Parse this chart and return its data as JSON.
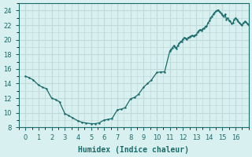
{
  "xlabel": "Humidex (Indice chaleur)",
  "ylabel": "",
  "xlim": [
    -0.5,
    17.0
  ],
  "ylim": [
    8,
    25
  ],
  "yticks": [
    8,
    10,
    12,
    14,
    16,
    18,
    20,
    22,
    24
  ],
  "xticks": [
    0,
    1,
    2,
    3,
    4,
    5,
    6,
    7,
    8,
    9,
    10,
    11,
    12,
    13,
    14,
    15,
    16
  ],
  "bg_color": "#d9f0f0",
  "grid_color": "#c0dada",
  "line_color": "#1a6b6b",
  "x": [
    0,
    0.3,
    0.6,
    1.0,
    1.3,
    1.6,
    2.0,
    2.3,
    2.6,
    3.0,
    3.3,
    3.6,
    4.0,
    4.3,
    4.6,
    5.0,
    5.3,
    5.6,
    6.0,
    6.3,
    6.6,
    7.0,
    7.3,
    7.6,
    8.0,
    8.3,
    8.6,
    9.0,
    9.3,
    9.6,
    10.0,
    10.3,
    10.6,
    11.0,
    11.1,
    11.2,
    11.3,
    11.4,
    11.5,
    11.6,
    11.7,
    11.8,
    11.9,
    12.0,
    12.1,
    12.2,
    12.3,
    12.4,
    12.5,
    12.6,
    12.7,
    12.8,
    12.9,
    13.0,
    13.1,
    13.2,
    13.3,
    13.4,
    13.5,
    13.6,
    13.7,
    13.8,
    13.9,
    14.0,
    14.1,
    14.2,
    14.3,
    14.4,
    14.5,
    14.6,
    14.7,
    14.8,
    14.9,
    15.0,
    15.1,
    15.2,
    15.3,
    15.4,
    15.5,
    15.6,
    15.7,
    15.8,
    15.9,
    16.0,
    16.1,
    16.2,
    16.3,
    16.4,
    16.5,
    16.6,
    16.7,
    16.8,
    16.9,
    17.0
  ],
  "y": [
    15.0,
    14.8,
    14.5,
    13.8,
    13.5,
    13.3,
    12.0,
    11.8,
    11.5,
    9.9,
    9.6,
    9.3,
    8.9,
    8.7,
    8.6,
    8.5,
    8.5,
    8.6,
    9.0,
    9.1,
    9.2,
    10.4,
    10.5,
    10.7,
    11.9,
    12.1,
    12.5,
    13.5,
    14.0,
    14.5,
    15.5,
    15.6,
    15.6,
    18.5,
    18.7,
    18.9,
    19.2,
    19.0,
    18.8,
    19.2,
    19.5,
    19.7,
    19.8,
    20.1,
    20.3,
    20.2,
    20.1,
    20.3,
    20.4,
    20.5,
    20.6,
    20.5,
    20.6,
    20.7,
    21.0,
    21.2,
    21.4,
    21.3,
    21.5,
    21.6,
    21.8,
    21.9,
    22.3,
    22.6,
    23.0,
    23.2,
    23.5,
    23.7,
    23.9,
    24.0,
    24.1,
    23.8,
    23.6,
    23.4,
    23.2,
    23.5,
    22.8,
    23.0,
    22.6,
    22.5,
    22.2,
    22.3,
    22.8,
    23.0,
    22.8,
    22.5,
    22.3,
    22.1,
    22.0,
    22.3,
    22.5,
    22.4,
    22.2,
    22.0
  ]
}
